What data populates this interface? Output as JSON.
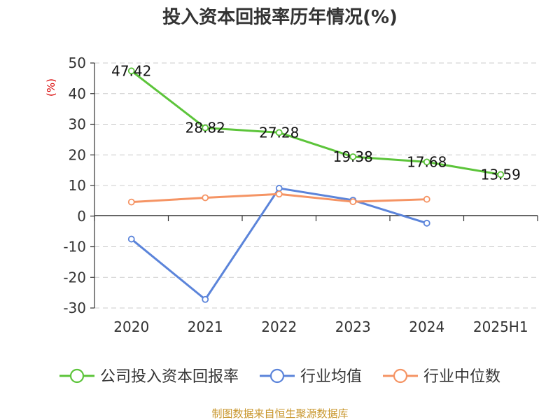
{
  "chart_data": {
    "type": "line",
    "title": "投入资本回报率历年情况(%)",
    "ylabel": "(%)",
    "xlabel": "",
    "categories": [
      "2020",
      "2021",
      "2022",
      "2023",
      "2024",
      "2025H1"
    ],
    "ylim": [
      -30,
      50
    ],
    "yticks": [
      50,
      40,
      30,
      20,
      10,
      0,
      -10,
      -20,
      -30
    ],
    "grid": true,
    "legend_position": "bottom",
    "series": [
      {
        "name": "公司投入资本回报率",
        "color": "#5cc43a",
        "values": [
          47.42,
          28.82,
          27.28,
          19.38,
          17.68,
          13.59
        ],
        "data_labels": [
          "47.42",
          "28.82",
          "27.28",
          "19.38",
          "17.68",
          "13.59"
        ]
      },
      {
        "name": "行业均值",
        "color": "#5b84da",
        "values": [
          -7.5,
          -27.2,
          9.1,
          5.2,
          -2.3,
          null
        ]
      },
      {
        "name": "行业中位数",
        "color": "#f59464",
        "values": [
          4.6,
          6.0,
          7.2,
          4.7,
          5.5,
          null
        ]
      }
    ]
  },
  "footer": {
    "source": "制图数据来自恒生聚源数据库"
  }
}
